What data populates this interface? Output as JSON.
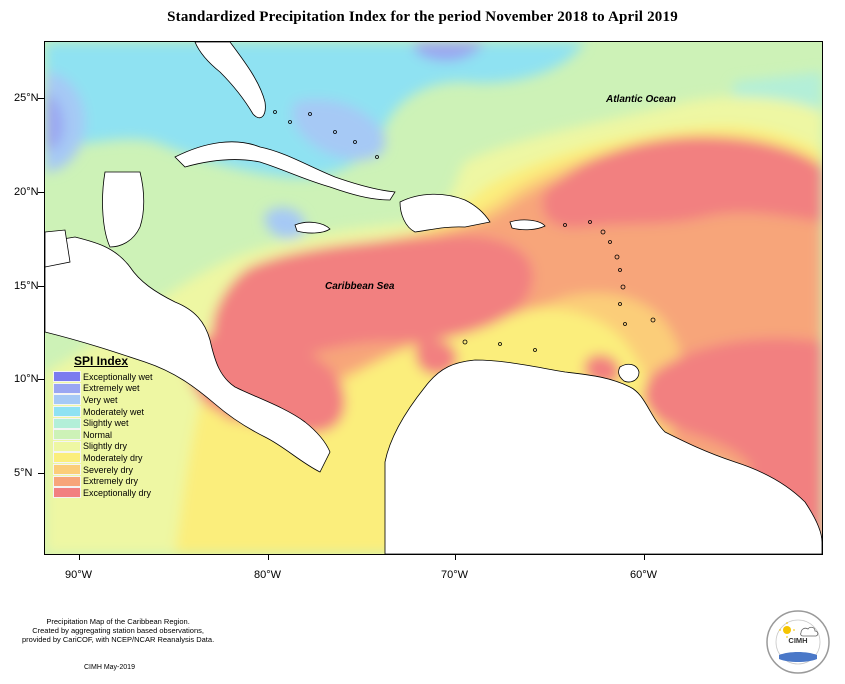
{
  "title": "Standardized Precipitation Index for the period November 2018 to April 2019",
  "map": {
    "latitude_labels": [
      "25°N",
      "20°N",
      "15°N",
      "10°N",
      "5°N"
    ],
    "longitude_labels": [
      "90°W",
      "80°W",
      "70°W",
      "60°W"
    ],
    "places": {
      "atlantic": "Atlantic Ocean",
      "caribbean": "Caribbean Sea"
    }
  },
  "legend": {
    "title": "SPI Index",
    "items": [
      {
        "label": "Exceptionally wet",
        "color": "#7b7bef"
      },
      {
        "label": "Extremely wet",
        "color": "#9aa6f2"
      },
      {
        "label": "Very wet",
        "color": "#a6c9f5"
      },
      {
        "label": "Moderately wet",
        "color": "#8fe2f2"
      },
      {
        "label": "Slightly wet",
        "color": "#b3efd8"
      },
      {
        "label": "Normal",
        "color": "#cdf2b7"
      },
      {
        "label": "Slightly dry",
        "color": "#eef7a3"
      },
      {
        "label": "Moderately dry",
        "color": "#fbee7c"
      },
      {
        "label": "Severely dry",
        "color": "#fbcd79"
      },
      {
        "label": "Extremely dry",
        "color": "#f7a57a"
      },
      {
        "label": "Exceptionally dry",
        "color": "#f28080"
      }
    ]
  },
  "footer": {
    "line1": "Precipitation Map of the Caribbean Region.",
    "line2": "Created by aggregating station based observations,",
    "line3": "provided by CariCOF, with NCEP/NCAR Reanalysis Data.",
    "credit": "CIMH May-2019"
  },
  "logo": {
    "text": "CIMH"
  }
}
